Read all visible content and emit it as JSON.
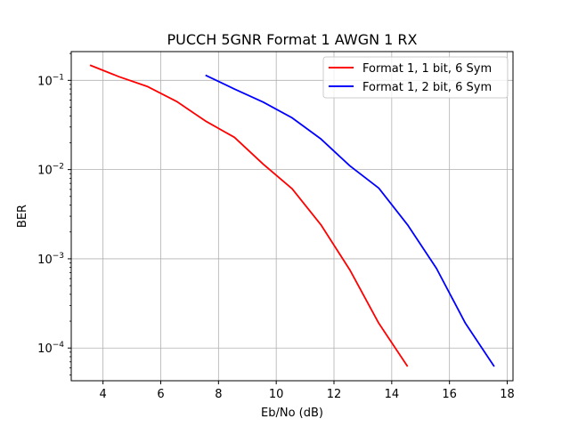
{
  "chart_data": {
    "type": "line",
    "title": "PUCCH 5GNR Format 1 AWGN 1 RX",
    "xlabel": "Eb/No (dB)",
    "ylabel": "BER",
    "xlim": [
      2.9,
      18.2
    ],
    "ylim": [
      4.3e-05,
      0.21
    ],
    "yscale": "log",
    "xticks": [
      4,
      6,
      8,
      10,
      12,
      14,
      16,
      18
    ],
    "yticks": [
      {
        "value": 0.1,
        "base": "10",
        "exp": "−1"
      },
      {
        "value": 0.01,
        "base": "10",
        "exp": "−2"
      },
      {
        "value": 0.001,
        "base": "10",
        "exp": "−3"
      },
      {
        "value": 0.0001,
        "base": "10",
        "exp": "−4"
      }
    ],
    "grid": true,
    "legend_position": "top-right",
    "series": [
      {
        "name": "Format 1, 1 bit, 6 Sym",
        "color": "#ff0000",
        "x": [
          3.55,
          4.55,
          5.55,
          6.55,
          7.55,
          8.55,
          9.55,
          10.55,
          11.55,
          12.55,
          13.55,
          14.55
        ],
        "y": [
          0.148,
          0.11,
          0.085,
          0.058,
          0.035,
          0.023,
          0.0115,
          0.0061,
          0.0024,
          0.00075,
          0.00019,
          6.2e-05
        ]
      },
      {
        "name": "Format 1, 2 bit, 6 Sym",
        "color": "#0000ff",
        "x": [
          7.55,
          8.55,
          9.55,
          10.55,
          11.55,
          12.55,
          13.55,
          14.55,
          15.55,
          16.55,
          17.55
        ],
        "y": [
          0.114,
          0.08,
          0.057,
          0.038,
          0.022,
          0.011,
          0.0062,
          0.0024,
          0.00078,
          0.00019,
          6.2e-05
        ]
      }
    ]
  }
}
